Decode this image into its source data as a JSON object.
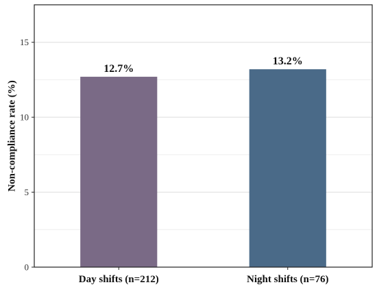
{
  "chart_data": {
    "type": "bar",
    "categories": [
      "Day shifts (n=212)",
      "Night shifts (n=76)"
    ],
    "values": [
      12.7,
      13.2
    ],
    "data_labels": [
      "12.7%",
      "13.2%"
    ],
    "colors": [
      "#7a6a86",
      "#4a6a88"
    ],
    "title": "",
    "xlabel": "",
    "ylabel": "Non-compliance rate (%)",
    "ylim": [
      0,
      17.5
    ],
    "yticks": [
      0,
      5,
      10,
      15
    ],
    "ytick_labels": [
      "0",
      "5",
      "10",
      "15"
    ],
    "grid": true,
    "legend": "none"
  }
}
